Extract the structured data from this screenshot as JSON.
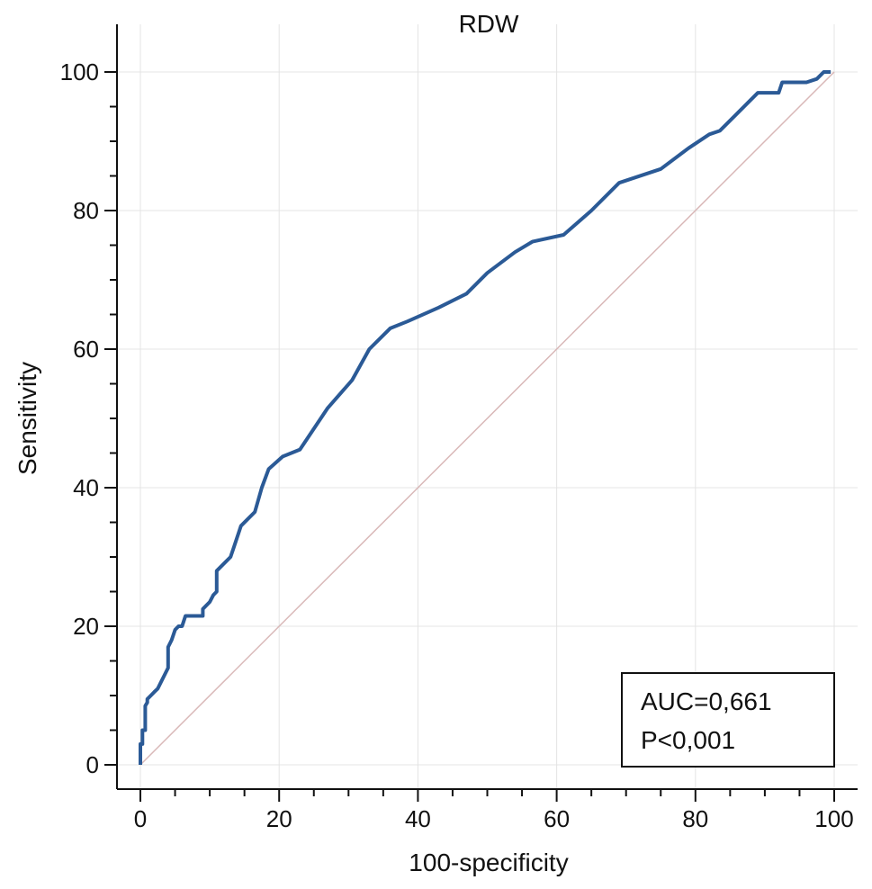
{
  "chart_data": {
    "type": "line",
    "title": "RDW",
    "xlabel": "100-specificity",
    "ylabel": "Sensitivity",
    "xlim": [
      0,
      100
    ],
    "ylim": [
      0,
      100
    ],
    "xticks": [
      "0",
      "20",
      "40",
      "60",
      "80",
      "100"
    ],
    "yticks": [
      "0",
      "20",
      "40",
      "60",
      "80",
      "100"
    ],
    "grid": true,
    "colors": {
      "roc": "#2b5a96",
      "reference": "#d9b8b8",
      "grid": "#e4e4e4"
    },
    "annotation": {
      "lines": [
        "AUC=0,661",
        "P<0,001"
      ],
      "placement": "bottom-right"
    },
    "series": [
      {
        "x": [
          0,
          0,
          0.3,
          0.3,
          0.7,
          0.7,
          1,
          1,
          1.5,
          2,
          2.5,
          3,
          3.5,
          4,
          4,
          4.5,
          5,
          5.5,
          6,
          6.5,
          7,
          8,
          9,
          9,
          10,
          10.5,
          11,
          11,
          12,
          13,
          13.5,
          14.5,
          15.5,
          16.5,
          17.5,
          18.5,
          20.5,
          23,
          27,
          30.5,
          33,
          36,
          38.5,
          43,
          47,
          50,
          54,
          56.5,
          61,
          65,
          69,
          75,
          79,
          82,
          83.5,
          86,
          89,
          92,
          92.5,
          96,
          97.5,
          98.5,
          99.5
        ],
        "y": [
          0,
          3,
          3,
          5,
          5,
          8.5,
          9,
          9.5,
          10,
          10.5,
          11,
          12,
          13,
          14,
          17,
          18,
          19.5,
          20,
          20,
          21.5,
          21.5,
          21.5,
          21.5,
          22.5,
          23.5,
          24.5,
          25,
          28,
          29,
          30,
          31.5,
          34.5,
          35.5,
          36.5,
          40,
          42.7,
          44.5,
          45.5,
          51.5,
          55.5,
          60,
          63,
          64,
          66,
          68,
          71,
          74,
          75.5,
          76.5,
          80,
          84,
          86,
          89,
          91,
          91.5,
          94,
          97,
          97,
          98.5,
          98.5,
          99,
          100,
          100
        ]
      },
      {
        "x": [
          0,
          100
        ],
        "y": [
          0,
          100
        ]
      }
    ]
  }
}
